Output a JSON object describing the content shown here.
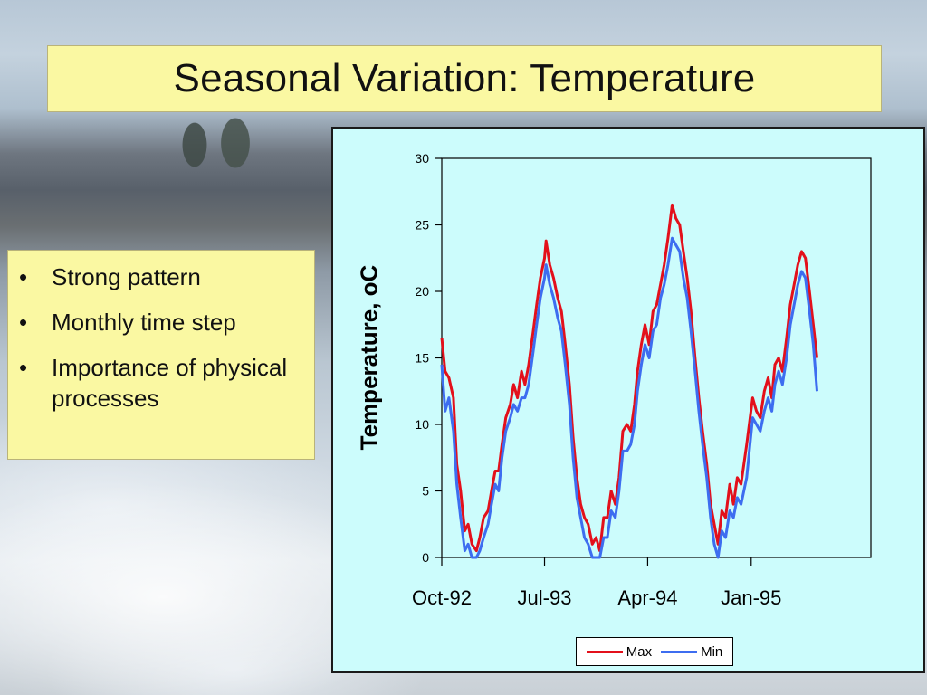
{
  "slide": {
    "title": "Seasonal Variation: Temperature",
    "bullets": [
      "Strong pattern",
      "Monthly time step",
      "Importance of physical processes"
    ],
    "bullet_symbol": "•"
  },
  "colors": {
    "title_box": "#faf8a2",
    "chart_background": "#ccfcfc",
    "max_series": "#e3101b",
    "min_series": "#3d6df0"
  },
  "chart_data": {
    "type": "line",
    "ylabel": "Temperature, oC",
    "xlabel": "",
    "ylim": [
      0,
      30
    ],
    "yticks": [
      0,
      5,
      10,
      15,
      20,
      25,
      30
    ],
    "xlim": [
      "1992-10-01",
      "1995-11-15"
    ],
    "xticks": [
      {
        "label": "Oct-92",
        "date": "1992-10-01"
      },
      {
        "label": "Jul-93",
        "date": "1993-07-01"
      },
      {
        "label": "Apr-94",
        "date": "1994-04-01"
      },
      {
        "label": "Jan-95",
        "date": "1995-01-01"
      }
    ],
    "legend": "bottom-right",
    "grid": false,
    "series": [
      {
        "name": "Max",
        "color": "#e3101b",
        "points": [
          [
            "1992-10-01",
            16.5
          ],
          [
            "1992-10-10",
            14.0
          ],
          [
            "1992-10-20",
            13.5
          ],
          [
            "1992-11-01",
            12.0
          ],
          [
            "1992-11-10",
            7.0
          ],
          [
            "1992-11-20",
            5.0
          ],
          [
            "1992-12-01",
            2.0
          ],
          [
            "1992-12-10",
            2.5
          ],
          [
            "1992-12-20",
            1.0
          ],
          [
            "1993-01-01",
            0.5
          ],
          [
            "1993-01-10",
            1.5
          ],
          [
            "1993-01-20",
            3.0
          ],
          [
            "1993-02-01",
            3.5
          ],
          [
            "1993-02-10",
            5.0
          ],
          [
            "1993-02-20",
            6.5
          ],
          [
            "1993-03-01",
            6.5
          ],
          [
            "1993-03-10",
            8.5
          ],
          [
            "1993-03-20",
            10.5
          ],
          [
            "1993-04-01",
            11.5
          ],
          [
            "1993-04-10",
            13.0
          ],
          [
            "1993-04-20",
            12.0
          ],
          [
            "1993-05-01",
            14.0
          ],
          [
            "1993-05-10",
            13.0
          ],
          [
            "1993-05-20",
            14.5
          ],
          [
            "1993-06-01",
            17.0
          ],
          [
            "1993-06-10",
            19.0
          ],
          [
            "1993-06-20",
            21.0
          ],
          [
            "1993-07-01",
            22.5
          ],
          [
            "1993-07-05",
            23.8
          ],
          [
            "1993-07-15",
            22.0
          ],
          [
            "1993-07-25",
            21.0
          ],
          [
            "1993-08-05",
            19.5
          ],
          [
            "1993-08-15",
            18.5
          ],
          [
            "1993-08-25",
            16.0
          ],
          [
            "1993-09-05",
            13.0
          ],
          [
            "1993-09-15",
            9.0
          ],
          [
            "1993-09-25",
            6.0
          ],
          [
            "1993-10-05",
            4.0
          ],
          [
            "1993-10-15",
            3.0
          ],
          [
            "1993-10-25",
            2.5
          ],
          [
            "1993-11-05",
            1.0
          ],
          [
            "1993-11-15",
            1.5
          ],
          [
            "1993-11-25",
            0.5
          ],
          [
            "1993-12-05",
            3.0
          ],
          [
            "1993-12-15",
            3.0
          ],
          [
            "1993-12-25",
            5.0
          ],
          [
            "1994-01-05",
            4.0
          ],
          [
            "1994-01-15",
            6.0
          ],
          [
            "1994-01-25",
            9.5
          ],
          [
            "1994-02-05",
            10.0
          ],
          [
            "1994-02-15",
            9.5
          ],
          [
            "1994-02-25",
            11.5
          ],
          [
            "1994-03-05",
            14.0
          ],
          [
            "1994-03-15",
            16.0
          ],
          [
            "1994-03-25",
            17.5
          ],
          [
            "1994-04-05",
            16.0
          ],
          [
            "1994-04-15",
            18.5
          ],
          [
            "1994-04-25",
            19.0
          ],
          [
            "1994-05-05",
            20.5
          ],
          [
            "1994-05-15",
            22.0
          ],
          [
            "1994-05-25",
            24.0
          ],
          [
            "1994-06-05",
            26.5
          ],
          [
            "1994-06-15",
            25.5
          ],
          [
            "1994-06-25",
            25.0
          ],
          [
            "1994-07-05",
            23.0
          ],
          [
            "1994-07-15",
            21.0
          ],
          [
            "1994-07-25",
            18.5
          ],
          [
            "1994-08-05",
            15.0
          ],
          [
            "1994-08-15",
            12.0
          ],
          [
            "1994-08-25",
            9.5
          ],
          [
            "1994-09-05",
            7.0
          ],
          [
            "1994-09-15",
            4.0
          ],
          [
            "1994-09-25",
            2.5
          ],
          [
            "1994-10-05",
            1.0
          ],
          [
            "1994-10-15",
            3.5
          ],
          [
            "1994-10-25",
            3.0
          ],
          [
            "1994-11-05",
            5.5
          ],
          [
            "1994-11-15",
            4.0
          ],
          [
            "1994-11-25",
            6.0
          ],
          [
            "1994-12-05",
            5.5
          ],
          [
            "1994-12-20",
            8.5
          ],
          [
            "1995-01-05",
            12.0
          ],
          [
            "1995-01-15",
            11.0
          ],
          [
            "1995-01-25",
            10.5
          ],
          [
            "1995-02-05",
            12.5
          ],
          [
            "1995-02-15",
            13.5
          ],
          [
            "1995-02-25",
            12.0
          ],
          [
            "1995-03-05",
            14.5
          ],
          [
            "1995-03-15",
            15.0
          ],
          [
            "1995-03-25",
            14.0
          ],
          [
            "1995-04-05",
            16.5
          ],
          [
            "1995-04-15",
            19.0
          ],
          [
            "1995-04-25",
            20.5
          ],
          [
            "1995-05-05",
            22.0
          ],
          [
            "1995-05-15",
            23.0
          ],
          [
            "1995-05-25",
            22.5
          ],
          [
            "1995-06-05",
            20.0
          ],
          [
            "1995-06-15",
            17.5
          ],
          [
            "1995-06-25",
            15.0
          ]
        ]
      },
      {
        "name": "Min",
        "color": "#3d6df0",
        "points": [
          [
            "1992-10-01",
            14.5
          ],
          [
            "1992-10-10",
            11.0
          ],
          [
            "1992-10-20",
            12.0
          ],
          [
            "1992-11-01",
            9.5
          ],
          [
            "1992-11-10",
            5.5
          ],
          [
            "1992-11-20",
            3.0
          ],
          [
            "1992-12-01",
            0.5
          ],
          [
            "1992-12-10",
            1.0
          ],
          [
            "1992-12-20",
            0.0
          ],
          [
            "1993-01-01",
            0.0
          ],
          [
            "1993-01-10",
            0.5
          ],
          [
            "1993-01-20",
            1.5
          ],
          [
            "1993-02-01",
            2.5
          ],
          [
            "1993-02-10",
            4.0
          ],
          [
            "1993-02-20",
            5.5
          ],
          [
            "1993-03-01",
            5.0
          ],
          [
            "1993-03-10",
            7.5
          ],
          [
            "1993-03-20",
            9.5
          ],
          [
            "1993-04-01",
            10.5
          ],
          [
            "1993-04-10",
            11.5
          ],
          [
            "1993-04-20",
            11.0
          ],
          [
            "1993-05-01",
            12.0
          ],
          [
            "1993-05-10",
            12.0
          ],
          [
            "1993-05-20",
            13.0
          ],
          [
            "1993-06-01",
            15.5
          ],
          [
            "1993-06-10",
            17.5
          ],
          [
            "1993-06-20",
            19.5
          ],
          [
            "1993-07-01",
            21.0
          ],
          [
            "1993-07-05",
            22.0
          ],
          [
            "1993-07-15",
            20.5
          ],
          [
            "1993-07-25",
            19.5
          ],
          [
            "1993-08-05",
            18.0
          ],
          [
            "1993-08-15",
            17.0
          ],
          [
            "1993-08-25",
            14.5
          ],
          [
            "1993-09-05",
            11.5
          ],
          [
            "1993-09-15",
            7.5
          ],
          [
            "1993-09-25",
            4.5
          ],
          [
            "1993-10-05",
            3.0
          ],
          [
            "1993-10-15",
            1.5
          ],
          [
            "1993-10-25",
            1.0
          ],
          [
            "1993-11-05",
            0.0
          ],
          [
            "1993-11-15",
            0.0
          ],
          [
            "1993-11-25",
            0.0
          ],
          [
            "1993-12-05",
            1.5
          ],
          [
            "1993-12-15",
            1.5
          ],
          [
            "1993-12-25",
            3.5
          ],
          [
            "1994-01-05",
            3.0
          ],
          [
            "1994-01-15",
            5.0
          ],
          [
            "1994-01-25",
            8.0
          ],
          [
            "1994-02-05",
            8.0
          ],
          [
            "1994-02-15",
            8.5
          ],
          [
            "1994-02-25",
            10.0
          ],
          [
            "1994-03-05",
            12.5
          ],
          [
            "1994-03-15",
            14.5
          ],
          [
            "1994-03-25",
            16.0
          ],
          [
            "1994-04-05",
            15.0
          ],
          [
            "1994-04-15",
            17.0
          ],
          [
            "1994-04-25",
            17.5
          ],
          [
            "1994-05-05",
            19.5
          ],
          [
            "1994-05-15",
            20.5
          ],
          [
            "1994-05-25",
            22.0
          ],
          [
            "1994-06-05",
            24.0
          ],
          [
            "1994-06-15",
            23.5
          ],
          [
            "1994-06-25",
            23.0
          ],
          [
            "1994-07-05",
            21.0
          ],
          [
            "1994-07-15",
            19.5
          ],
          [
            "1994-07-25",
            17.0
          ],
          [
            "1994-08-05",
            14.0
          ],
          [
            "1994-08-15",
            11.0
          ],
          [
            "1994-08-25",
            8.5
          ],
          [
            "1994-09-05",
            6.0
          ],
          [
            "1994-09-15",
            3.0
          ],
          [
            "1994-09-25",
            1.0
          ],
          [
            "1994-10-05",
            0.0
          ],
          [
            "1994-10-15",
            2.0
          ],
          [
            "1994-10-25",
            1.5
          ],
          [
            "1994-11-05",
            3.5
          ],
          [
            "1994-11-15",
            3.0
          ],
          [
            "1994-11-25",
            4.5
          ],
          [
            "1994-12-05",
            4.0
          ],
          [
            "1994-12-20",
            6.0
          ],
          [
            "1995-01-05",
            10.5
          ],
          [
            "1995-01-15",
            10.0
          ],
          [
            "1995-01-25",
            9.5
          ],
          [
            "1995-02-05",
            11.0
          ],
          [
            "1995-02-15",
            12.0
          ],
          [
            "1995-02-25",
            11.0
          ],
          [
            "1995-03-05",
            13.0
          ],
          [
            "1995-03-15",
            14.0
          ],
          [
            "1995-03-25",
            13.0
          ],
          [
            "1995-04-05",
            15.0
          ],
          [
            "1995-04-15",
            17.5
          ],
          [
            "1995-04-25",
            19.0
          ],
          [
            "1995-05-05",
            20.5
          ],
          [
            "1995-05-15",
            21.5
          ],
          [
            "1995-05-25",
            21.0
          ],
          [
            "1995-06-05",
            18.5
          ],
          [
            "1995-06-15",
            16.0
          ],
          [
            "1995-06-25",
            12.5
          ]
        ]
      }
    ]
  }
}
